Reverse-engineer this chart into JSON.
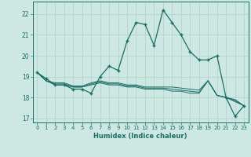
{
  "xlabel": "Humidex (Indice chaleur)",
  "background_color": "#cde8e2",
  "grid_color": "#afd0cb",
  "line_color": "#1a6e64",
  "xlim": [
    -0.5,
    23.5
  ],
  "ylim": [
    16.8,
    22.6
  ],
  "yticks": [
    17,
    18,
    19,
    20,
    21,
    22
  ],
  "xticks": [
    0,
    1,
    2,
    3,
    4,
    5,
    6,
    7,
    8,
    9,
    10,
    11,
    12,
    13,
    14,
    15,
    16,
    17,
    18,
    19,
    20,
    21,
    22,
    23
  ],
  "series_main": [
    19.2,
    18.9,
    18.6,
    18.6,
    18.4,
    18.4,
    18.2,
    19.0,
    19.5,
    19.3,
    20.7,
    21.6,
    21.5,
    20.5,
    22.2,
    21.6,
    21.0,
    20.2,
    19.8,
    19.8,
    20.0,
    18.0,
    17.1,
    17.6
  ],
  "series2": [
    19.2,
    18.8,
    18.6,
    18.6,
    18.5,
    18.5,
    18.6,
    18.7,
    18.6,
    18.6,
    18.5,
    18.5,
    18.4,
    18.4,
    18.4,
    18.3,
    18.3,
    18.2,
    18.2,
    18.8,
    18.1,
    18.0,
    17.8,
    17.6
  ],
  "series3": [
    19.2,
    18.8,
    18.65,
    18.65,
    18.5,
    18.5,
    18.65,
    18.75,
    18.65,
    18.65,
    18.55,
    18.55,
    18.45,
    18.45,
    18.45,
    18.4,
    18.35,
    18.3,
    18.25,
    18.8,
    18.1,
    18.0,
    17.85,
    17.6
  ],
  "series4": [
    19.2,
    18.8,
    18.7,
    18.7,
    18.55,
    18.55,
    18.7,
    18.8,
    18.7,
    18.7,
    18.6,
    18.6,
    18.5,
    18.5,
    18.5,
    18.5,
    18.45,
    18.4,
    18.35,
    18.8,
    18.1,
    18.0,
    17.9,
    17.6
  ]
}
